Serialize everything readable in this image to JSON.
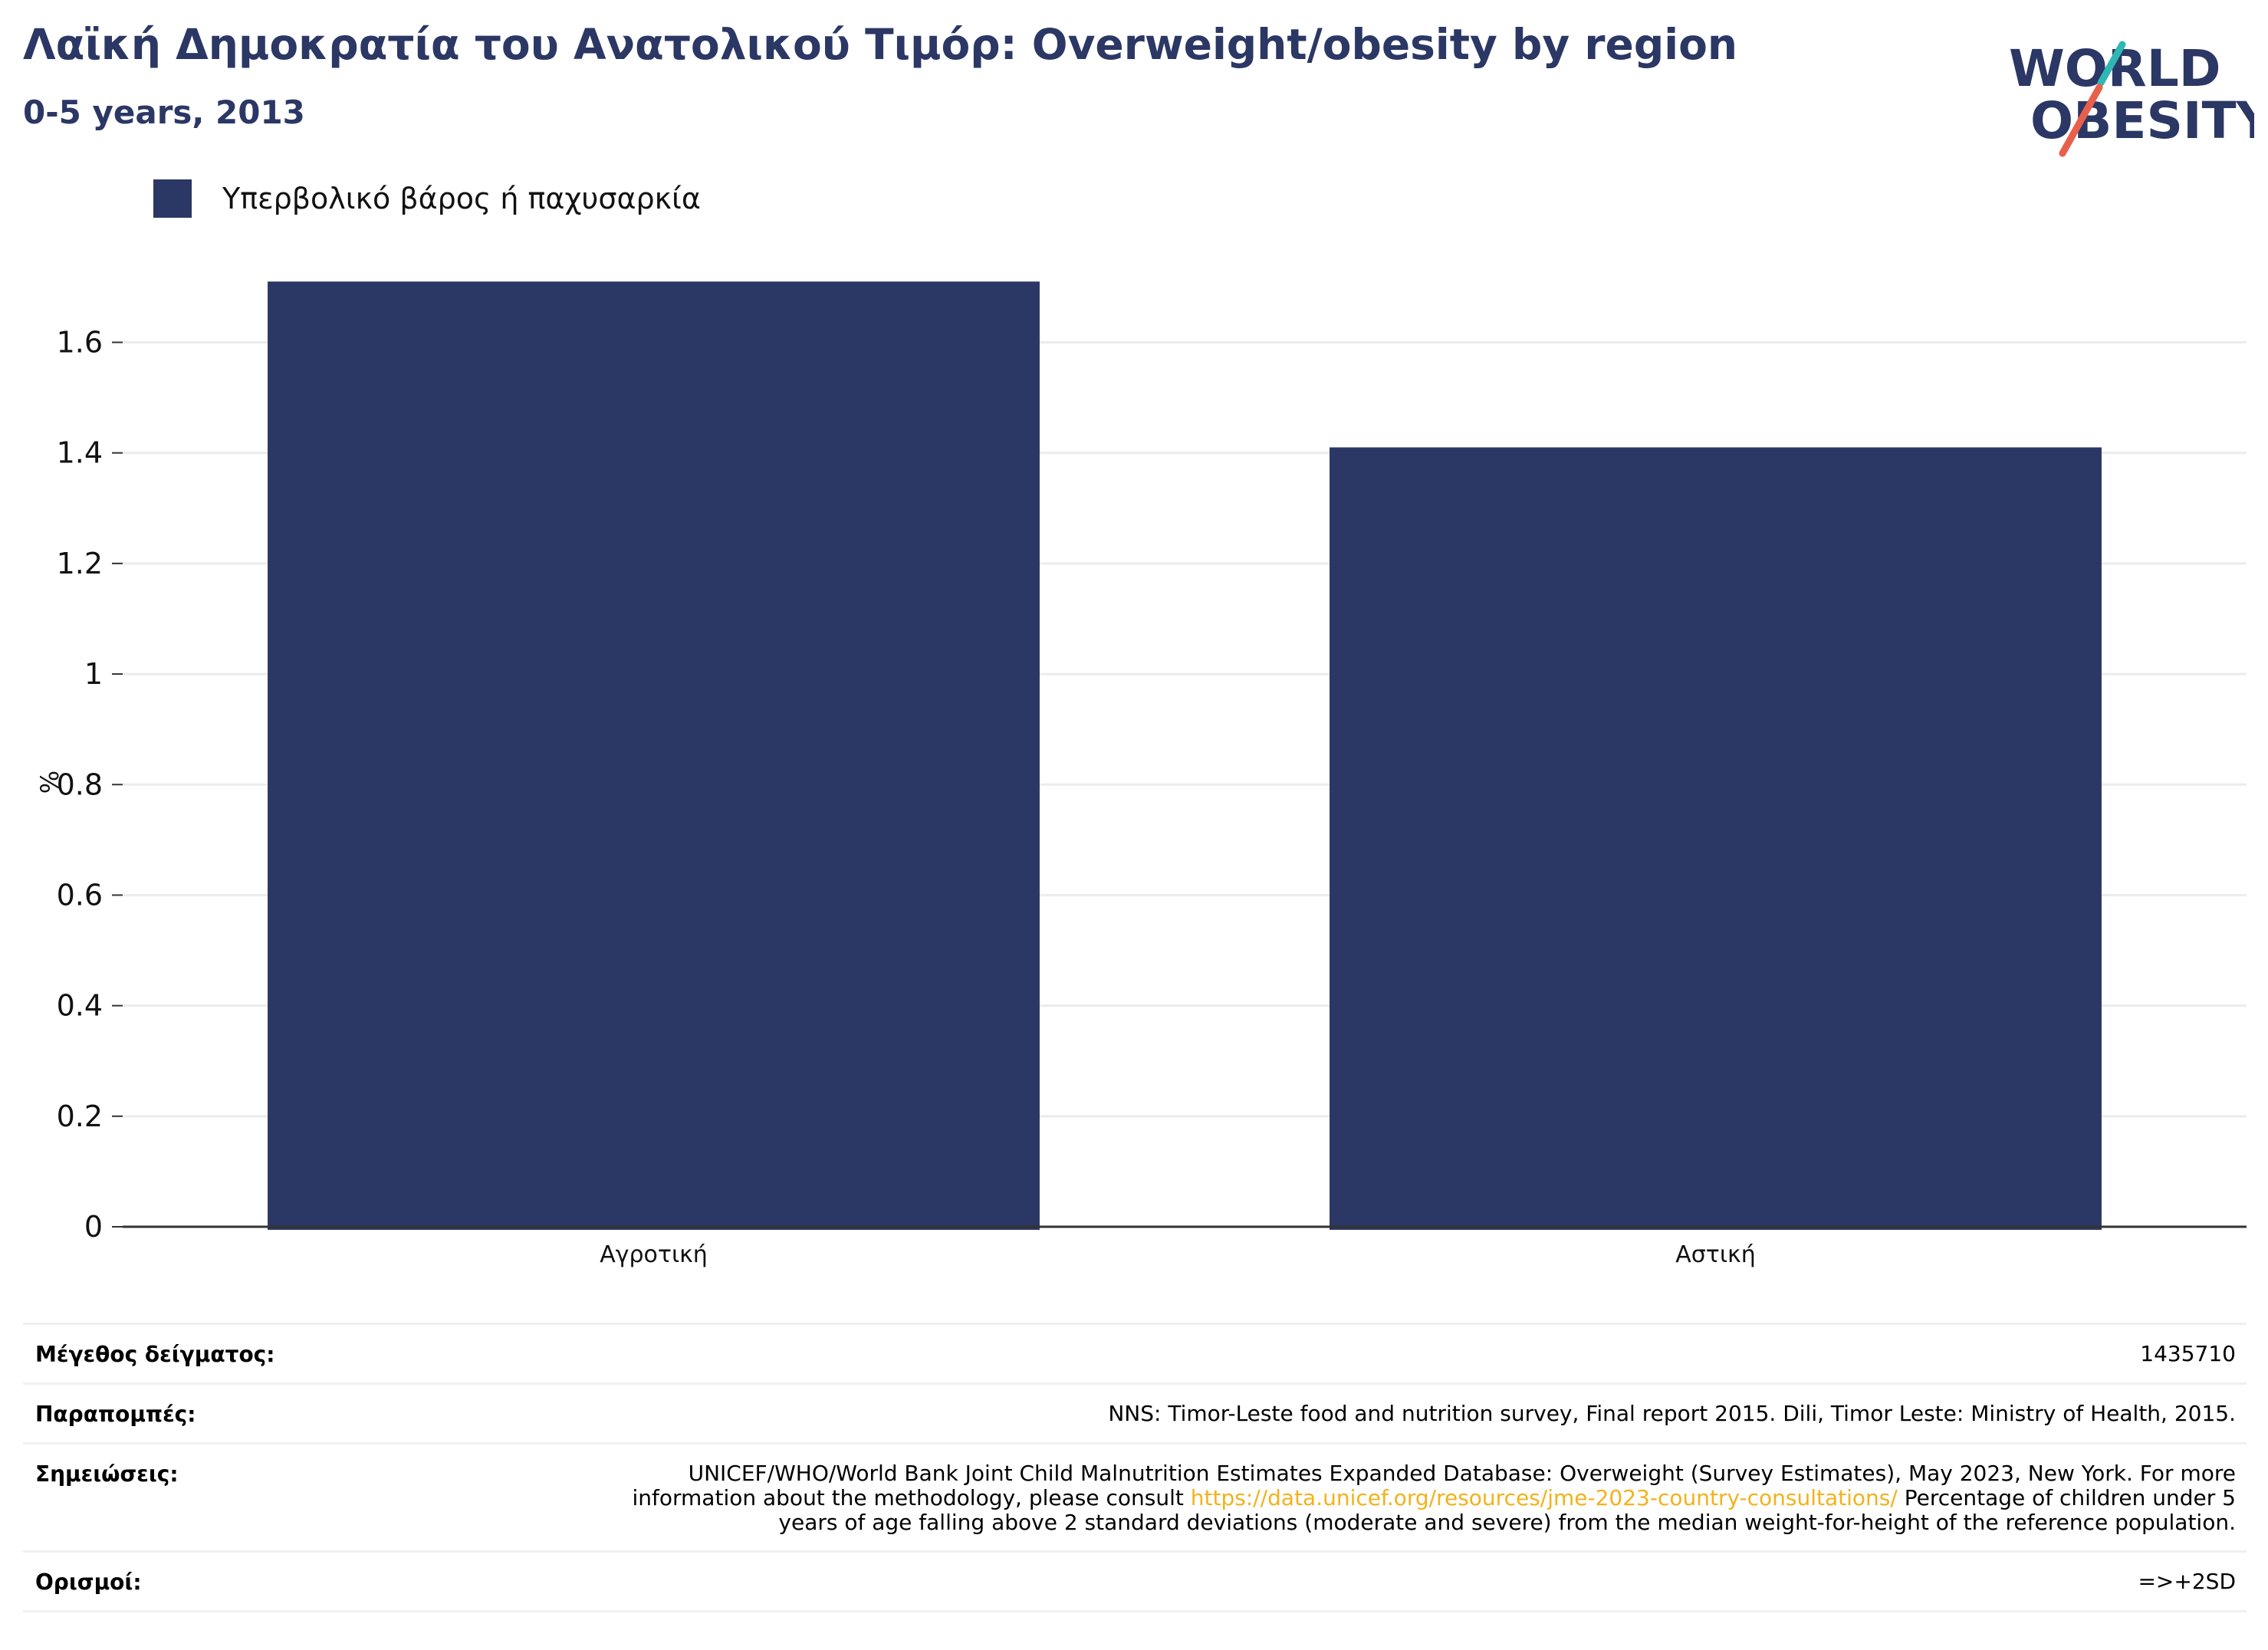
{
  "header": {
    "title": "Λαϊκή Δημοκρατία του Ανατολικού Τιμόρ: Overweight/obesity by region",
    "subtitle": "0-5 years, 2013"
  },
  "logo": {
    "line1": "WORLD",
    "line2": "OBESITY",
    "accent_colors": [
      "#2fb7b5",
      "#e8604c"
    ]
  },
  "colors": {
    "bar": "#2b3764",
    "title": "#2b3764",
    "grid": "#ececec",
    "axis": "#333333",
    "link": "#f2b21b"
  },
  "chart_data": {
    "type": "bar",
    "categories": [
      "Αγροτική",
      "Αστική"
    ],
    "series": [
      {
        "name": "Υπερβολικό βάρος ή παχυσαρκία",
        "values": [
          1.71,
          1.41
        ]
      }
    ],
    "ylabel": "%",
    "xlabel": "",
    "ylim": [
      0,
      1.72
    ],
    "yticks": [
      0,
      0.2,
      0.4,
      0.6,
      0.8,
      1,
      1.2,
      1.4,
      1.6
    ],
    "ytick_labels": [
      "0",
      "0.2",
      "0.4",
      "0.6",
      "0.8",
      "1",
      "1.2",
      "1.4",
      "1.6"
    ],
    "grid": true,
    "legend_position": "top-left"
  },
  "info": {
    "sample_label": "Μέγεθος δείγματος:",
    "sample_value": "1435710",
    "refs_label": "Παραπομπές:",
    "refs_value": "NNS: Timor-Leste food and nutrition survey, Final report 2015. Dili, Timor Leste: Ministry of Health, 2015.",
    "notes_label": "Σημειώσεις:",
    "notes_before": "UNICEF/WHO/World Bank Joint Child Malnutrition Estimates Expanded Database: Overweight (Survey Estimates), May 2023, New York. For more information about the methodology, please consult ",
    "notes_link": "https://data.unicef.org/resources/jme-2023-country-consultations/",
    "notes_after": " Percentage of children under 5 years of age falling above 2 standard deviations (moderate and severe) from the median weight-for-height of the reference population.",
    "defs_label": "Ορισμοί:",
    "defs_value": "=>+2SD"
  }
}
